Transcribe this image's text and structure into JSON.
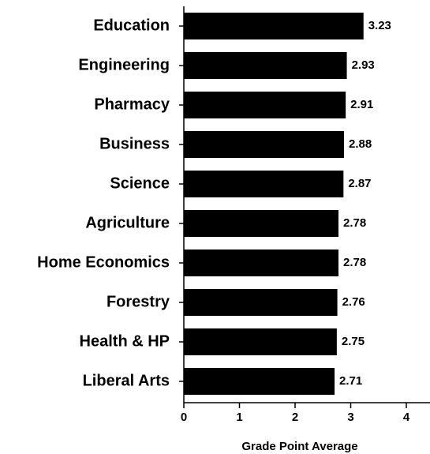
{
  "chart_data": {
    "type": "bar",
    "orientation": "horizontal",
    "categories": [
      "Education",
      "Engineering",
      "Pharmacy",
      "Business",
      "Science",
      "Agriculture",
      "Home Economics",
      "Forestry",
      "Health & HP",
      "Liberal Arts"
    ],
    "values": [
      3.23,
      2.93,
      2.91,
      2.88,
      2.87,
      2.78,
      2.78,
      2.76,
      2.75,
      2.71
    ],
    "color": "#000000",
    "xlabel": "Grade Point Average",
    "xlim": [
      0,
      4
    ],
    "xticks": [
      0,
      1,
      2,
      3,
      4
    ],
    "grid": false
  }
}
